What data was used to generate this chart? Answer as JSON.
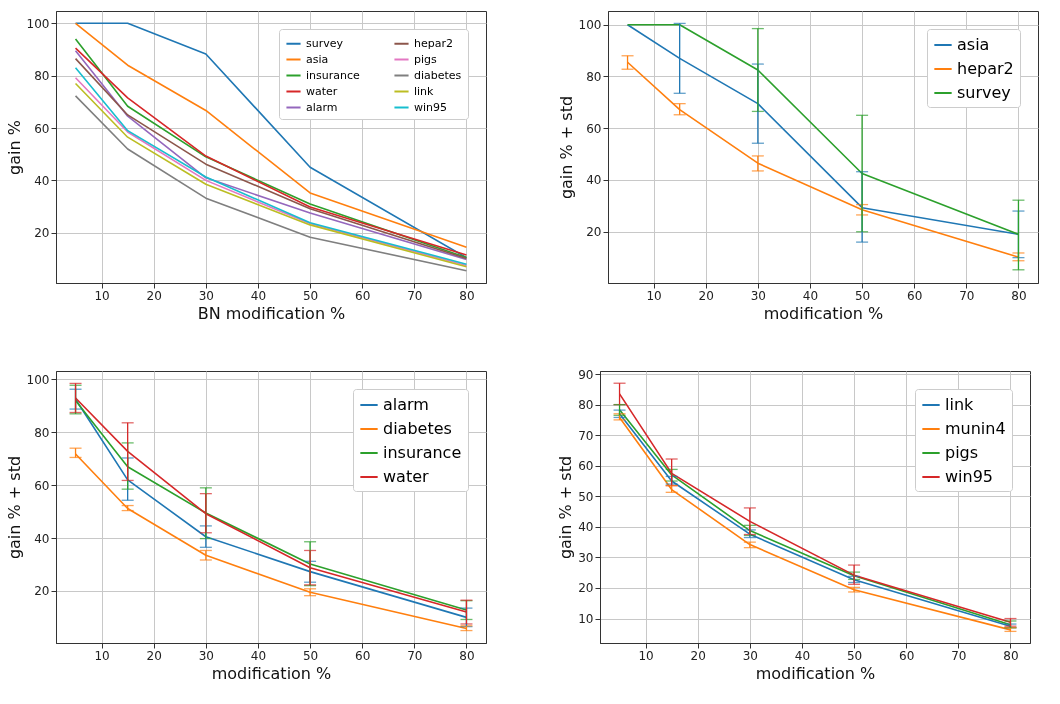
{
  "chart_data": [
    {
      "type": "line",
      "xlabel": "BN modification %",
      "ylabel": "gain %",
      "x": [
        5,
        15,
        30,
        50,
        80
      ],
      "xlim": [
        1.25,
        83.75
      ],
      "ylim": [
        0.8,
        104.7
      ],
      "xticks": [
        10,
        20,
        30,
        40,
        50,
        60,
        70,
        80
      ],
      "yticks": [
        20,
        40,
        60,
        80,
        100
      ],
      "grid": true,
      "legend": "top right",
      "series": [
        {
          "name": "survey",
          "color": "#1f77b4",
          "values": [
            100,
            100,
            88.3,
            45,
            10.5
          ]
        },
        {
          "name": "asia",
          "color": "#ff7f0e",
          "values": [
            100,
            84,
            66.7,
            35.2,
            14.5
          ]
        },
        {
          "name": "insurance",
          "color": "#2ca02c",
          "values": [
            94,
            68.3,
            49,
            31,
            10.5
          ]
        },
        {
          "name": "water",
          "color": "#d62728",
          "values": [
            90.5,
            71.5,
            49.3,
            29.8,
            11.5
          ]
        },
        {
          "name": "alarm",
          "color": "#9467bd",
          "values": [
            89.5,
            64.5,
            41,
            27.5,
            9.8
          ]
        },
        {
          "name": "hepar2",
          "color": "#8c564b",
          "values": [
            86.5,
            65,
            46.2,
            29.2,
            10.2
          ]
        },
        {
          "name": "pigs",
          "color": "#e377c2",
          "values": [
            79.2,
            58.5,
            40,
            23.5,
            7.5
          ]
        },
        {
          "name": "diabetes",
          "color": "#7f7f7f",
          "values": [
            72.3,
            52,
            33.2,
            18.3,
            5.5
          ]
        },
        {
          "name": "link",
          "color": "#bcbd22",
          "values": [
            77,
            56.5,
            38.5,
            23,
            7
          ]
        },
        {
          "name": "win95",
          "color": "#17becf",
          "values": [
            83,
            59,
            41.3,
            23.8,
            8
          ]
        }
      ]
    },
    {
      "type": "line",
      "xlabel": "modification %",
      "ylabel": "gain % + std",
      "x": [
        5,
        15,
        30,
        50,
        80
      ],
      "xlim": [
        1.25,
        83.75
      ],
      "ylim": [
        0.2,
        105.3
      ],
      "xticks": [
        10,
        20,
        30,
        40,
        50,
        60,
        70,
        80
      ],
      "yticks": [
        20,
        40,
        60,
        80,
        100
      ],
      "grid": true,
      "legend": "top right",
      "series": [
        {
          "name": "asia",
          "color": "#1f77b4",
          "values": [
            100,
            87,
            69.5,
            29.3,
            19
          ],
          "errors": [
            null,
            [
              73.5,
              100.5
            ],
            [
              54.2,
              84.8
            ],
            [
              16,
              43.2
            ],
            [
              10,
              28
            ]
          ]
        },
        {
          "name": "hepar2",
          "color": "#ff7f0e",
          "values": [
            85.5,
            67.2,
            46.5,
            28.5,
            10.2
          ],
          "errors": [
            [
              82.8,
              88
            ],
            [
              65.2,
              69.5
            ],
            [
              43.5,
              49.3
            ],
            [
              26.5,
              30.5
            ],
            [
              8.8,
              11.8
            ]
          ]
        },
        {
          "name": "survey",
          "color": "#2ca02c",
          "values": [
            100,
            100,
            82.5,
            42.5,
            19
          ],
          "errors": [
            null,
            null,
            [
              66.5,
              98.5
            ],
            [
              20,
              65
            ],
            [
              5.3,
              32.2
            ]
          ]
        }
      ]
    },
    {
      "type": "line",
      "xlabel": "modification %",
      "ylabel": "gain % + std",
      "x": [
        5,
        15,
        30,
        50,
        80
      ],
      "xlim": [
        1.25,
        83.75
      ],
      "ylim": [
        0.3,
        103.2
      ],
      "xticks": [
        10,
        20,
        30,
        40,
        50,
        60,
        70,
        80
      ],
      "yticks": [
        20,
        40,
        60,
        80,
        100
      ],
      "grid": true,
      "legend": "top right",
      "series": [
        {
          "name": "alarm",
          "color": "#1f77b4",
          "values": [
            92.5,
            62,
            40.5,
            27.3,
            10
          ],
          "errors": [
            [
              88.8,
              96.3
            ],
            [
              54.3,
              70.3
            ],
            [
              36.5,
              44.6
            ],
            [
              23.3,
              31.2
            ],
            [
              6.5,
              13.5
            ]
          ]
        },
        {
          "name": "diabetes",
          "color": "#ff7f0e",
          "values": [
            71.8,
            51.2,
            33.5,
            19.5,
            5.8
          ],
          "errors": [
            [
              70.5,
              74
            ],
            [
              50.4,
              52.3
            ],
            [
              31.7,
              35.3
            ],
            [
              18.2,
              20.8
            ],
            [
              5,
              6.8
            ]
          ]
        },
        {
          "name": "insurance",
          "color": "#2ca02c",
          "values": [
            92,
            67,
            49.5,
            30.2,
            12.8
          ],
          "errors": [
            [
              87,
              97.8
            ],
            [
              58.5,
              76
            ],
            [
              39.8,
              59
            ],
            [
              22,
              38.6
            ],
            [
              9.2,
              16.3
            ]
          ]
        },
        {
          "name": "water",
          "color": "#d62728",
          "values": [
            93,
            72.8,
            49.2,
            28.8,
            12
          ],
          "errors": [
            [
              87.5,
              98.5
            ],
            [
              61.8,
              83.6
            ],
            [
              42,
              56.8
            ],
            [
              22.3,
              35.3
            ],
            [
              7.5,
              16.5
            ]
          ]
        }
      ]
    },
    {
      "type": "line",
      "xlabel": "modification %",
      "ylabel": "gain % + std",
      "x": [
        5,
        15,
        30,
        50,
        80
      ],
      "xlim": [
        1.25,
        83.75
      ],
      "ylim": [
        2,
        91
      ],
      "xticks": [
        10,
        20,
        30,
        40,
        50,
        60,
        70,
        80
      ],
      "yticks": [
        10,
        20,
        30,
        40,
        50,
        60,
        70,
        80,
        90
      ],
      "grid": true,
      "legend": "top right",
      "series": [
        {
          "name": "link",
          "color": "#1f77b4",
          "values": [
            77,
            55,
            37.6,
            22.7,
            7.5
          ],
          "errors": [
            [
              75.8,
              78.2
            ],
            [
              54,
              56.5
            ],
            [
              36.5,
              39
            ],
            [
              21.8,
              23.8
            ],
            [
              7,
              8.2
            ]
          ]
        },
        {
          "name": "munin4",
          "color": "#ff7f0e",
          "values": [
            75.8,
            52.2,
            34.2,
            19.4,
            6.3
          ],
          "errors": [
            [
              75,
              77
            ],
            [
              51.3,
              53.5
            ],
            [
              33.2,
              35
            ],
            [
              18.7,
              20.2
            ],
            [
              5.8,
              7
            ]
          ]
        },
        {
          "name": "pigs",
          "color": "#2ca02c",
          "values": [
            78.3,
            57,
            38.8,
            24,
            8
          ],
          "errors": [
            [
              76.5,
              80
            ],
            [
              55,
              58.8
            ],
            [
              37.2,
              40.5
            ],
            [
              22.8,
              25.2
            ],
            [
              7.0,
              9.2
            ]
          ]
        },
        {
          "name": "win95",
          "color": "#d62728",
          "values": [
            83.5,
            57.5,
            41.8,
            24.2,
            8.8
          ],
          "errors": [
            [
              80,
              87
            ],
            [
              53.5,
              62.2
            ],
            [
              37.5,
              46.2
            ],
            [
              21.2,
              27.5
            ],
            [
              7.5,
              10
            ]
          ]
        }
      ]
    }
  ]
}
